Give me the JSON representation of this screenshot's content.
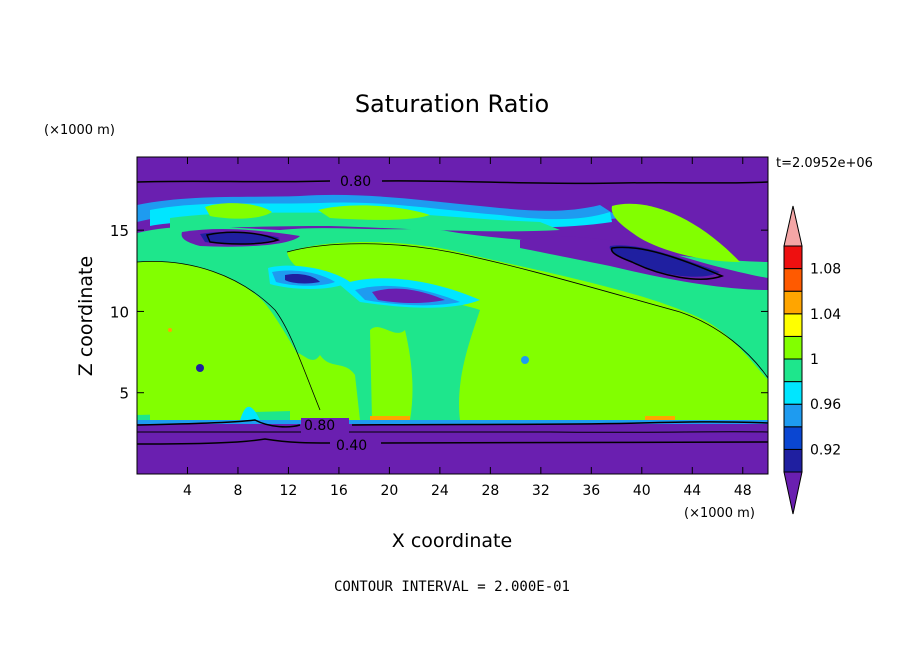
{
  "chart_data": {
    "type": "heatmap",
    "title": "Saturation Ratio",
    "xlabel": "X coordinate",
    "ylabel": "Z coordinate",
    "x_unit": "(×1000 m)",
    "y_unit": "(×1000 m)",
    "time_label": "t=2.0952e+06",
    "footer": "CONTOUR INTERVAL = 2.000E-01",
    "xlim": [
      0,
      50
    ],
    "ylim": [
      0,
      19.5
    ],
    "x_ticks": [
      4,
      8,
      12,
      16,
      20,
      24,
      28,
      32,
      36,
      40,
      44,
      48
    ],
    "y_ticks": [
      5,
      10,
      15
    ],
    "contour_labels": [
      "0.80",
      "0.80",
      "0.40"
    ],
    "colorbar": {
      "levels": [
        0.9,
        0.92,
        0.94,
        0.96,
        0.98,
        1.0,
        1.02,
        1.04,
        1.06,
        1.08,
        1.1
      ],
      "tick_labels": [
        "1.08",
        "1.04",
        "1",
        "0.96",
        "0.92"
      ],
      "colors": [
        "#6a1fb0",
        "#1f1fa0",
        "#0a46d2",
        "#1e9bf0",
        "#00e6ff",
        "#1ee68c",
        "#82ff00",
        "#ffff00",
        "#ffa500",
        "#ff5a00",
        "#ee1010",
        "#f4a6a6"
      ]
    }
  }
}
